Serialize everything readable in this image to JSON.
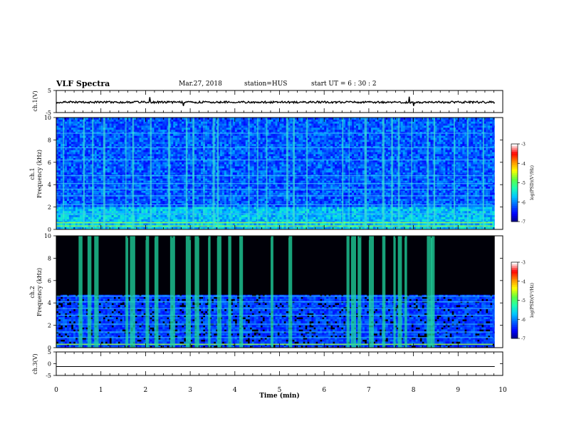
{
  "header": {
    "title": "VLF Spectra",
    "date": "Mar.27, 2018",
    "station": "station=HUS",
    "start_time": "start  UT =   6 : 30 : 2"
  },
  "chart_data": [
    {
      "type": "line",
      "panel": "ch1-waveform",
      "ylabel": "ch.1(V)",
      "ylim": [
        -5,
        5
      ],
      "yticks": [
        "5",
        "-5"
      ],
      "xlim": [
        0,
        10
      ],
      "series_color": "#000000",
      "baseline": -0.3,
      "spikes": [
        {
          "x": 2.1,
          "y": 2.0
        },
        {
          "x": 2.85,
          "y": -2.0
        },
        {
          "x": 7.9,
          "y": 2.2
        },
        {
          "x": 8.0,
          "y": -2.0
        }
      ]
    },
    {
      "type": "heatmap",
      "panel": "ch1-spectrogram",
      "ylabel": "ch.1\nFrequency (kHz)",
      "ylabel_lines": [
        "ch.1",
        "Frequency (kHz)"
      ],
      "ylim": [
        0,
        10
      ],
      "yticks": [
        "0",
        "2",
        "4",
        "6",
        "8",
        "10"
      ],
      "xlim": [
        0,
        10
      ],
      "background": "dark-blue",
      "horizontal_bands_khz": [
        0.3,
        0.6,
        1.4,
        2.2,
        3.0,
        3.6,
        4.1,
        4.8,
        6.2,
        7.3,
        8.6
      ],
      "vertical_events_min": [
        0.15,
        0.6,
        0.8,
        1.05,
        1.55,
        1.7,
        2.1,
        2.5,
        2.9,
        3.05,
        3.3,
        3.5,
        3.6,
        3.9,
        4.3,
        4.5,
        4.7,
        5.15,
        5.3,
        5.6,
        6.4,
        6.55,
        6.9,
        7.3,
        7.5,
        7.65,
        7.95,
        8.3,
        8.45,
        8.9,
        9.2,
        9.55
      ],
      "colorbar": {
        "label": "log(PSD)(V²/Hz)",
        "ticks": [
          "-3",
          "-4",
          "-5",
          "-6",
          "-7"
        ],
        "range": [
          -7,
          -3
        ]
      }
    },
    {
      "type": "heatmap",
      "panel": "ch2-spectrogram",
      "ylabel": "ch.2\nFrequency (kHz)",
      "ylabel_lines": [
        "ch.2",
        "Frequency (kHz)"
      ],
      "ylim": [
        0,
        10
      ],
      "yticks": [
        "0",
        "2",
        "4",
        "6",
        "8",
        "10"
      ],
      "xlim": [
        0,
        10
      ],
      "background": "black-above-4.7kHz",
      "horizontal_bands_khz": [
        0.3,
        0.9,
        1.4,
        2.1,
        2.9,
        3.5,
        4.1,
        4.6
      ],
      "vertical_events_min": [
        0.5,
        0.7,
        0.85,
        1.55,
        1.65,
        2.0,
        2.2,
        2.55,
        2.9,
        3.1,
        3.4,
        3.6,
        3.85,
        4.1,
        4.8,
        5.2,
        6.5,
        6.6,
        6.75,
        7.0,
        7.3,
        7.55,
        7.65,
        7.8,
        8.3,
        8.4
      ],
      "colorbar": {
        "label": "log(PSD)(V²/Hz)",
        "ticks": [
          "-3",
          "-4",
          "-5",
          "-6",
          "-7"
        ],
        "range": [
          -7,
          -3
        ]
      }
    },
    {
      "type": "line",
      "panel": "ch3-waveform",
      "ylabel": "ch.3(V)",
      "ylim": [
        -5,
        5
      ],
      "yticks": [
        "5",
        "0",
        "-5"
      ],
      "xlim": [
        0,
        10
      ],
      "series_color": "#000000",
      "baseline": -1.2
    },
    {
      "type": "axis",
      "xlabel": "Time (min)",
      "xticks": [
        "0",
        "1",
        "2",
        "3",
        "4",
        "5",
        "6",
        "7",
        "8",
        "9",
        "10"
      ]
    }
  ],
  "colors": {
    "colormap": [
      "#00007a",
      "#0000ff",
      "#0060ff",
      "#00c8ff",
      "#20ffb0",
      "#60ff40",
      "#ffff00",
      "#ff9000",
      "#ff0000",
      "#ffffff"
    ],
    "axis": "#000000"
  }
}
